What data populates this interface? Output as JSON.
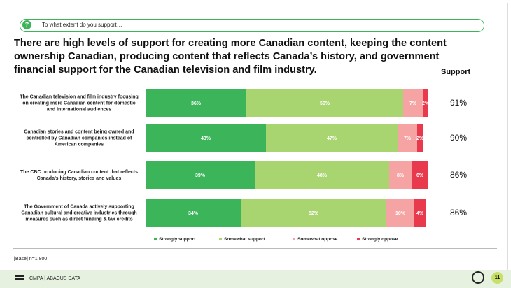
{
  "question": "To what extent do you support…",
  "chart_data": {
    "type": "stacked-bar-horizontal",
    "title": "There are high levels of support for creating more Canadian content, keeping the content ownership Canadian, producing content that reflects Canada’s history, and government financial support for the Canadian television and film industry.",
    "categories": [
      "The Canadian television and film industry focusing on creating more Canadian content for domestic and international audiences",
      "Canadian stories and content being owned and controlled by Canadian companies instead of American companies",
      "The CBC producing Canadian content that reflects Canada’s history, stories and values",
      "The Government of Canada actively supporting Canadian cultural and creative industries through measures such as direct funding & tax credits"
    ],
    "series": [
      {
        "name": "Strongly support",
        "color": "#3cb55a",
        "values": [
          36,
          43,
          39,
          34
        ],
        "value_labels": [
          "36%",
          "43%",
          "39%",
          "34%"
        ]
      },
      {
        "name": "Somewhat support",
        "color": "#a9d570",
        "values": [
          56,
          47,
          48,
          52
        ],
        "value_labels": [
          "56%",
          "47%",
          "48%",
          "52%"
        ]
      },
      {
        "name": "Somewhat oppose",
        "color": "#f5a3a3",
        "values": [
          7,
          7,
          8,
          10
        ],
        "value_labels": [
          "7%",
          "7%",
          "8%",
          "10%"
        ]
      },
      {
        "name": "Strongly oppose",
        "color": "#e83a4c",
        "values": [
          2,
          2,
          6,
          4
        ],
        "value_labels": [
          "2%",
          "2%",
          "6%",
          "4%"
        ]
      }
    ],
    "total": {
      "title": "Support",
      "values": [
        91,
        90,
        86,
        86
      ],
      "value_labels": [
        "91%",
        "90%",
        "86%",
        "86%"
      ]
    }
  },
  "base": "[Base] n=1,800",
  "footer": {
    "brand": "CMPA | ABACUS DATA",
    "page": "11"
  }
}
